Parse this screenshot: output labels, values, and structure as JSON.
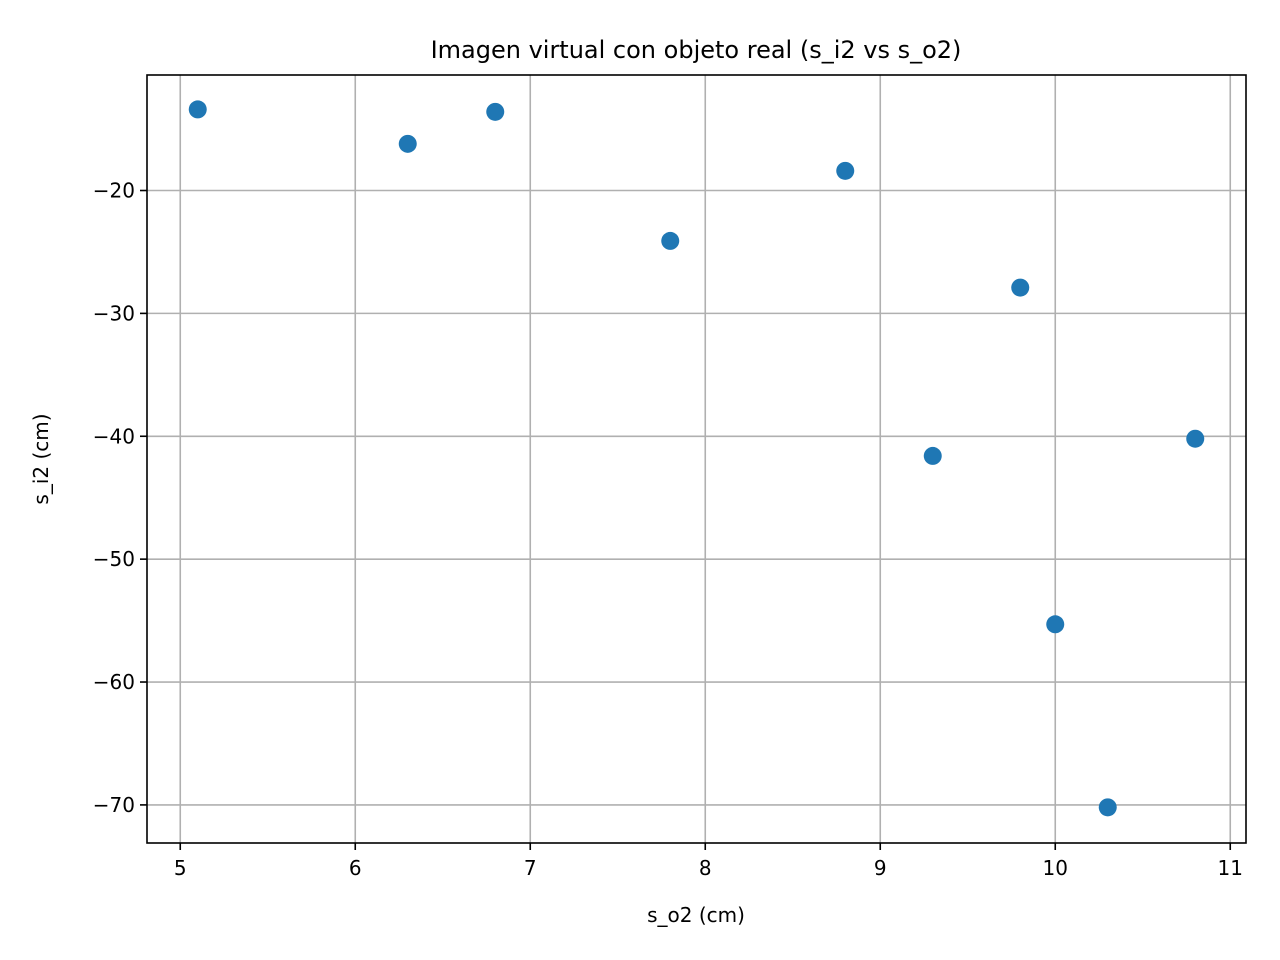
{
  "chart_data": {
    "type": "scatter",
    "title": "Imagen virtual con objeto real (s_i2 vs s_o2)",
    "xlabel": "s_o2 (cm)",
    "ylabel": "s_i2 (cm)",
    "xlim": [
      4.81,
      11.09
    ],
    "ylim": [
      -73.1,
      -10.6
    ],
    "xticks": [
      5,
      6,
      7,
      8,
      9,
      10,
      11
    ],
    "yticks": [
      -20,
      -30,
      -40,
      -50,
      -60,
      -70
    ],
    "grid": true,
    "marker_color": "#1f77b4",
    "points": [
      {
        "x": 5.1,
        "y": -13.4
      },
      {
        "x": 6.3,
        "y": -16.2
      },
      {
        "x": 6.8,
        "y": -13.6
      },
      {
        "x": 7.8,
        "y": -24.1
      },
      {
        "x": 8.8,
        "y": -18.4
      },
      {
        "x": 9.3,
        "y": -41.6
      },
      {
        "x": 9.8,
        "y": -27.9
      },
      {
        "x": 10.0,
        "y": -55.3
      },
      {
        "x": 10.3,
        "y": -70.2
      },
      {
        "x": 10.8,
        "y": -40.2
      }
    ]
  }
}
